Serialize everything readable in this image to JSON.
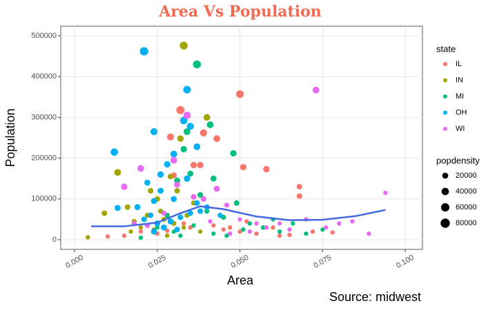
{
  "chart_data": {
    "type": "scatter",
    "title": "Area Vs Population",
    "x_label": "Area",
    "y_label": "Population",
    "caption": "Source: midwest",
    "xlim": [
      -0.0042,
      0.1052
    ],
    "ylim": [
      -23650,
      523650
    ],
    "xticks": [
      {
        "value": 0,
        "label": "0.000"
      },
      {
        "value": 0.025,
        "label": "0.025"
      },
      {
        "value": 0.05,
        "label": "0.050"
      },
      {
        "value": 0.075,
        "label": "0.075"
      },
      {
        "value": 0.1,
        "label": "0.100"
      }
    ],
    "yticks": [
      0,
      100000,
      200000,
      300000,
      400000,
      500000
    ],
    "grid": true,
    "color_legend_title": "state",
    "size_legend_title": "popdensity",
    "size_legend": [
      20000,
      40000,
      60000,
      80000
    ],
    "series": [
      {
        "name": "IL",
        "color": "#F8766D",
        "x": [
          0.032,
          0.05,
          0.029,
          0.039,
          0.043,
          0.051,
          0.058,
          0.036,
          0.038,
          0.068,
          0.068,
          0.03,
          0.02,
          0.025,
          0.035,
          0.045,
          0.05,
          0.055,
          0.06,
          0.065,
          0.042,
          0.033,
          0.015,
          0.01,
          0.072,
          0.078,
          0.047,
          0.052,
          0.062,
          0.028
        ],
        "values": [
          318000,
          357000,
          252000,
          262000,
          248000,
          178000,
          173000,
          183000,
          183000,
          130000,
          107000,
          158000,
          20000,
          15000,
          30000,
          25000,
          20000,
          15000,
          30000,
          12000,
          35000,
          40000,
          10000,
          8000,
          20000,
          18000,
          30000,
          45000,
          10000,
          22000
        ],
        "sizes": [
          55000,
          45000,
          35000,
          35000,
          30000,
          25000,
          25000,
          25000,
          25000,
          15000,
          15000,
          20000,
          5000,
          5000,
          5000,
          5000,
          5000,
          5000,
          5000,
          5000,
          5000,
          5000,
          5000,
          5000,
          5000,
          5000,
          5000,
          5000,
          5000,
          5000
        ]
      },
      {
        "name": "IN",
        "color": "#A3A500",
        "x": [
          0.033,
          0.04,
          0.032,
          0.013,
          0.009,
          0.004,
          0.016,
          0.023,
          0.025,
          0.029,
          0.031,
          0.018,
          0.02,
          0.022,
          0.027,
          0.03,
          0.034,
          0.036,
          0.017,
          0.024,
          0.028,
          0.033,
          0.038,
          0.026
        ],
        "values": [
          476000,
          300000,
          248000,
          165000,
          65000,
          6000,
          80000,
          120000,
          100000,
          155000,
          120000,
          45000,
          30000,
          60000,
          50000,
          40000,
          60000,
          90000,
          20000,
          25000,
          10000,
          30000,
          20000,
          70000
        ],
        "sizes": [
          50000,
          30000,
          25000,
          30000,
          15000,
          5000,
          15000,
          15000,
          15000,
          15000,
          15000,
          10000,
          5000,
          10000,
          10000,
          10000,
          10000,
          10000,
          5000,
          5000,
          5000,
          5000,
          5000,
          10000
        ]
      },
      {
        "name": "MI",
        "color": "#00BF7D",
        "x": [
          0.037,
          0.034,
          0.041,
          0.033,
          0.048,
          0.035,
          0.031,
          0.042,
          0.038,
          0.049,
          0.053,
          0.057,
          0.062,
          0.066,
          0.07,
          0.075,
          0.045,
          0.04,
          0.03,
          0.032,
          0.036,
          0.042,
          0.046,
          0.051,
          0.025,
          0.028,
          0.06,
          0.02
        ],
        "values": [
          430000,
          265000,
          282000,
          222000,
          212000,
          162000,
          145000,
          150000,
          110000,
          90000,
          40000,
          30000,
          20000,
          40000,
          15000,
          25000,
          55000,
          70000,
          20000,
          10000,
          35000,
          15000,
          10000,
          25000,
          30000,
          60000,
          50000,
          5000
        ],
        "sizes": [
          50000,
          30000,
          30000,
          25000,
          25000,
          20000,
          20000,
          20000,
          15000,
          15000,
          5000,
          5000,
          5000,
          5000,
          5000,
          5000,
          10000,
          10000,
          5000,
          5000,
          5000,
          5000,
          5000,
          5000,
          5000,
          10000,
          5000,
          5000
        ]
      },
      {
        "name": "OH",
        "color": "#00B0F6",
        "x": [
          0.021,
          0.034,
          0.033,
          0.035,
          0.024,
          0.012,
          0.037,
          0.03,
          0.028,
          0.026,
          0.034,
          0.022,
          0.019,
          0.013,
          0.024,
          0.026,
          0.03,
          0.037,
          0.04,
          0.023,
          0.025,
          0.027,
          0.024,
          0.029,
          0.032,
          0.035,
          0.031,
          0.038,
          0.021,
          0.044
        ],
        "values": [
          462000,
          368000,
          292000,
          278000,
          265000,
          215000,
          228000,
          210000,
          185000,
          160000,
          150000,
          140000,
          80000,
          78000,
          95000,
          120000,
          100000,
          90000,
          80000,
          60000,
          40000,
          30000,
          20000,
          45000,
          55000,
          65000,
          25000,
          70000,
          50000,
          60000
        ],
        "sizes": [
          60000,
          45000,
          40000,
          35000,
          35000,
          40000,
          30000,
          30000,
          25000,
          25000,
          25000,
          20000,
          20000,
          20000,
          20000,
          20000,
          20000,
          15000,
          15000,
          15000,
          20000,
          20000,
          20000,
          20000,
          15000,
          15000,
          15000,
          15000,
          15000,
          10000
        ]
      },
      {
        "name": "WI",
        "color": "#E76BF3",
        "x": [
          0.073,
          0.034,
          0.03,
          0.02,
          0.015,
          0.031,
          0.043,
          0.036,
          0.039,
          0.094,
          0.08,
          0.089,
          0.07,
          0.062,
          0.055,
          0.05,
          0.046,
          0.058,
          0.065,
          0.076,
          0.084,
          0.041,
          0.047,
          0.053,
          0.027,
          0.022,
          0.018
        ],
        "values": [
          367000,
          305000,
          195000,
          175000,
          130000,
          135000,
          125000,
          105000,
          100000,
          115000,
          40000,
          15000,
          50000,
          40000,
          40000,
          50000,
          85000,
          30000,
          25000,
          30000,
          45000,
          45000,
          15000,
          20000,
          65000,
          35000,
          40000
        ],
        "sizes": [
          30000,
          40000,
          30000,
          30000,
          25000,
          20000,
          20000,
          15000,
          15000,
          5000,
          5000,
          5000,
          5000,
          5000,
          5000,
          5000,
          10000,
          5000,
          5000,
          5000,
          5000,
          5000,
          5000,
          5000,
          10000,
          10000,
          10000
        ]
      }
    ],
    "smooth": {
      "color": "#4169E1",
      "x": [
        0.005,
        0.015,
        0.025,
        0.032,
        0.038,
        0.045,
        0.055,
        0.065,
        0.075,
        0.085,
        0.094
      ],
      "values": [
        33000,
        33000,
        42000,
        65000,
        82000,
        75000,
        57000,
        48000,
        49000,
        58000,
        73000
      ]
    }
  }
}
